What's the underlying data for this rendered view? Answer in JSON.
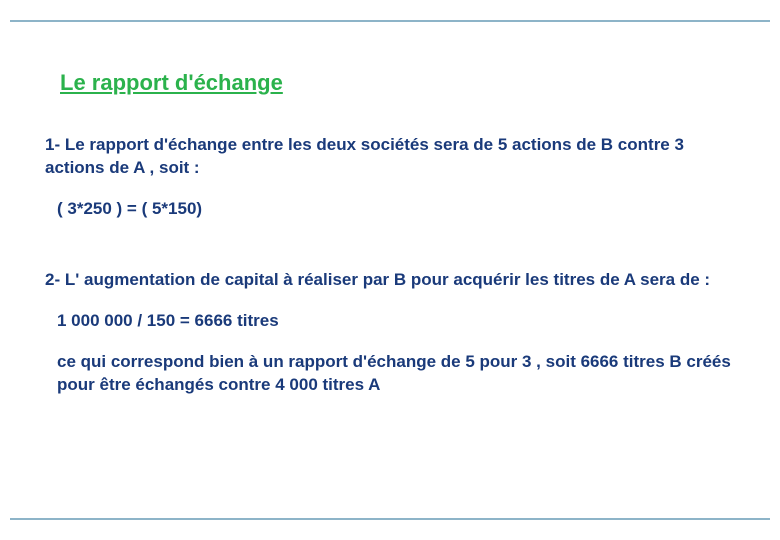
{
  "slide": {
    "title": "Le rapport d'échange",
    "p1": "1- Le rapport d'échange entre les deux sociétés sera de 5 actions de B contre 3 actions de A , soit :",
    "p2": "( 3*250 ) = ( 5*150)",
    "p3": "2- L' augmentation de capital à réaliser par B pour acquérir les titres de A sera de :",
    "p4": "1 000 000 / 150 = 6666 titres",
    "p5": "ce qui correspond bien à un rapport d'échange de 5 pour 3 , soit 6666 titres B créés pour être échangés contre 4 000 titres A"
  },
  "colors": {
    "title": "#2bb24c",
    "body": "#1a3a7a",
    "rule": "#8db4c8",
    "background": "#ffffff"
  },
  "typography": {
    "title_fontsize": 22,
    "body_fontsize": 17,
    "font_family": "Arial"
  }
}
